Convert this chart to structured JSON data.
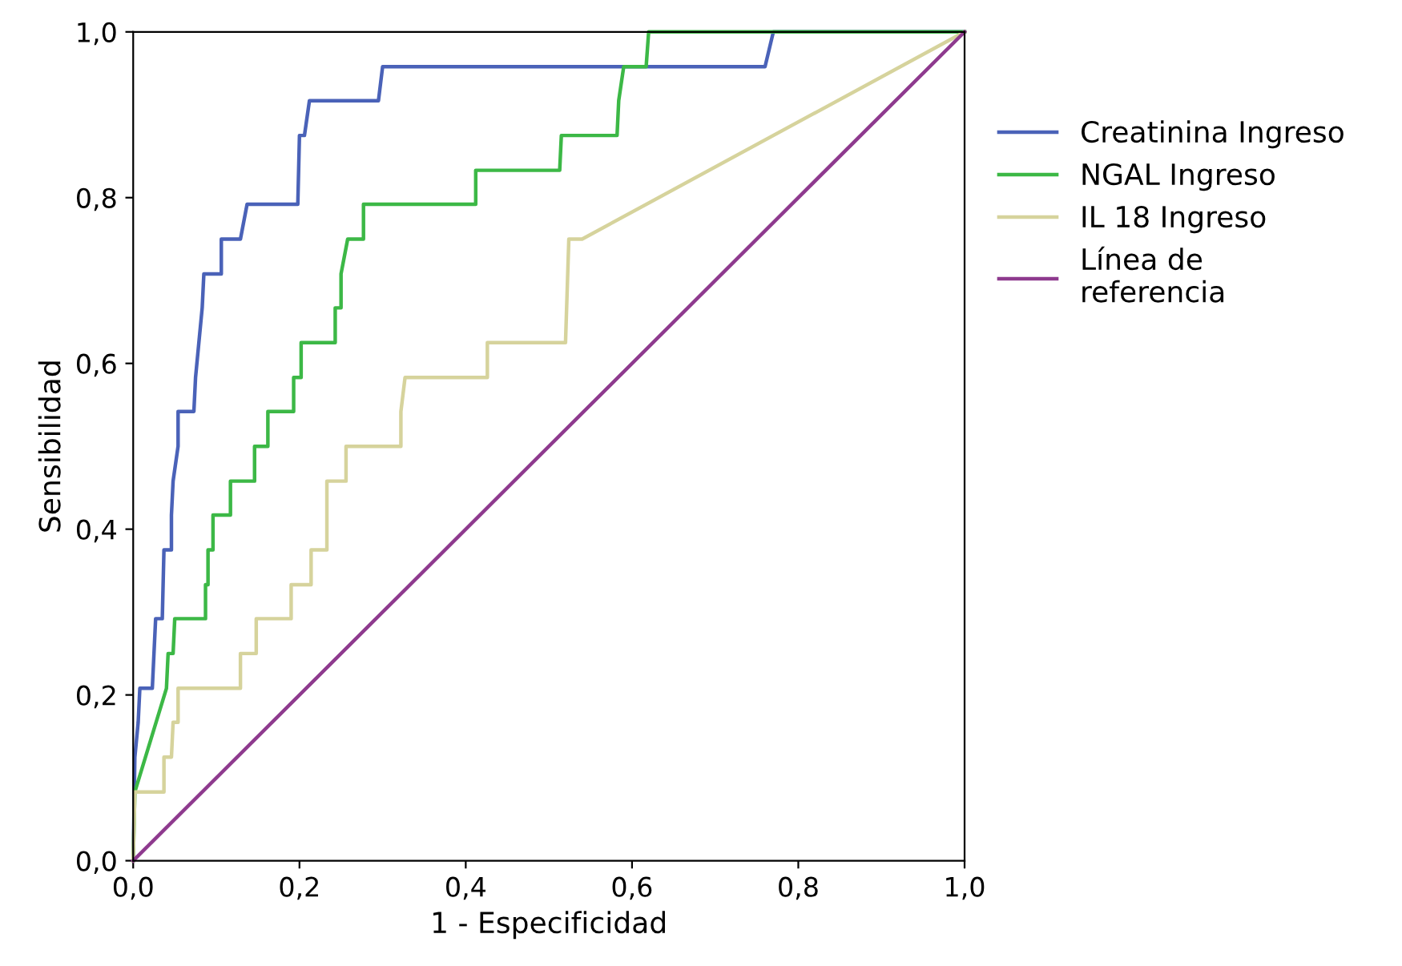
{
  "chart_data": {
    "type": "line",
    "xlabel": "1 - Especificidad",
    "ylabel": "Sensibilidad",
    "xlim": [
      0,
      1
    ],
    "ylim": [
      0,
      1
    ],
    "xticks": [
      {
        "value": 0,
        "label": "0,0"
      },
      {
        "value": 0.2,
        "label": "0,2"
      },
      {
        "value": 0.4,
        "label": "0,4"
      },
      {
        "value": 0.6,
        "label": "0,6"
      },
      {
        "value": 0.8,
        "label": "0,8"
      },
      {
        "value": 1,
        "label": "1,0"
      }
    ],
    "yticks": [
      {
        "value": 0,
        "label": "0,0"
      },
      {
        "value": 0.2,
        "label": "0,2"
      },
      {
        "value": 0.4,
        "label": "0,4"
      },
      {
        "value": 0.6,
        "label": "0,6"
      },
      {
        "value": 0.8,
        "label": "0,8"
      },
      {
        "value": 1,
        "label": "1,0"
      }
    ],
    "grid": false,
    "legend": "right",
    "marker": "none",
    "line_style": "solid",
    "series": [
      {
        "name": "Creatinina Ingreso",
        "color": "#4a62b8",
        "x": [
          0,
          0.002,
          0.006,
          0.008,
          0.023,
          0.025,
          0.027,
          0.035,
          0.037,
          0.046,
          0.046,
          0.048,
          0.054,
          0.054,
          0.073,
          0.075,
          0.079,
          0.083,
          0.085,
          0.106,
          0.106,
          0.129,
          0.137,
          0.198,
          0.2,
          0.206,
          0.212,
          0.295,
          0.3,
          0.76,
          0.77,
          1
        ],
        "values": [
          0,
          0.125,
          0.167,
          0.208,
          0.208,
          0.25,
          0.292,
          0.292,
          0.375,
          0.375,
          0.417,
          0.458,
          0.5,
          0.542,
          0.542,
          0.583,
          0.625,
          0.667,
          0.708,
          0.708,
          0.75,
          0.75,
          0.792,
          0.792,
          0.875,
          0.875,
          0.917,
          0.917,
          0.958,
          0.958,
          1,
          1
        ]
      },
      {
        "name": "NGAL Ingreso",
        "color": "#3cb846",
        "x": [
          0,
          0.002,
          0.04,
          0.042,
          0.048,
          0.05,
          0.087,
          0.087,
          0.09,
          0.09,
          0.096,
          0.096,
          0.117,
          0.117,
          0.146,
          0.146,
          0.162,
          0.162,
          0.193,
          0.193,
          0.202,
          0.202,
          0.243,
          0.243,
          0.25,
          0.25,
          0.258,
          0.277,
          0.277,
          0.412,
          0.412,
          0.513,
          0.515,
          0.582,
          0.584,
          0.59,
          0.617,
          0.62,
          1
        ],
        "values": [
          0,
          0.083,
          0.208,
          0.25,
          0.25,
          0.292,
          0.292,
          0.333,
          0.333,
          0.375,
          0.375,
          0.417,
          0.417,
          0.458,
          0.458,
          0.5,
          0.5,
          0.542,
          0.542,
          0.583,
          0.583,
          0.625,
          0.625,
          0.667,
          0.667,
          0.708,
          0.75,
          0.75,
          0.792,
          0.792,
          0.833,
          0.833,
          0.875,
          0.875,
          0.917,
          0.958,
          0.958,
          1,
          1
        ]
      },
      {
        "name": "IL 18 Ingreso",
        "color": "#d6d39c",
        "x": [
          0,
          0.002,
          0.037,
          0.037,
          0.046,
          0.048,
          0.054,
          0.054,
          0.129,
          0.129,
          0.148,
          0.148,
          0.19,
          0.19,
          0.214,
          0.214,
          0.233,
          0.233,
          0.256,
          0.256,
          0.322,
          0.322,
          0.327,
          0.426,
          0.426,
          0.52,
          0.524,
          0.54,
          1
        ],
        "values": [
          0,
          0.083,
          0.083,
          0.125,
          0.125,
          0.167,
          0.167,
          0.208,
          0.208,
          0.25,
          0.25,
          0.292,
          0.292,
          0.333,
          0.333,
          0.375,
          0.375,
          0.458,
          0.458,
          0.5,
          0.5,
          0.542,
          0.583,
          0.583,
          0.625,
          0.625,
          0.75,
          0.75,
          1
        ]
      },
      {
        "name": "Línea de\nreferencia",
        "color": "#8e3a8e",
        "x": [
          0,
          1
        ],
        "values": [
          0,
          1
        ]
      }
    ]
  }
}
